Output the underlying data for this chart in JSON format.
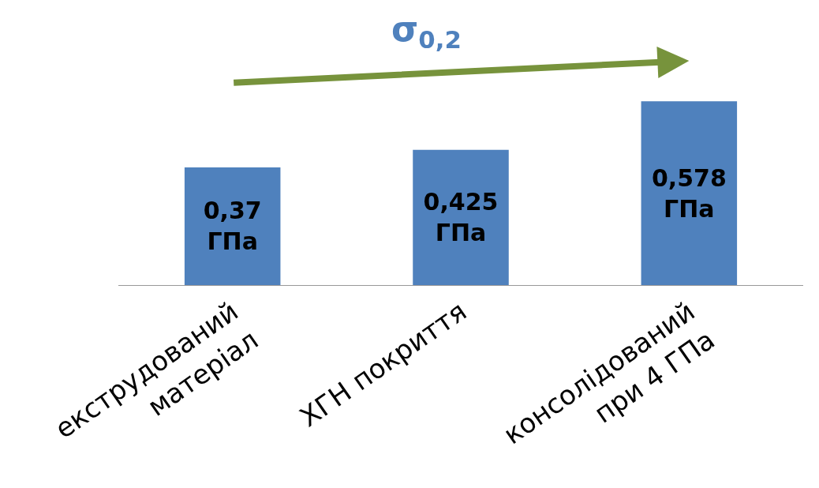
{
  "chart_data": {
    "type": "bar",
    "title": "σ$_{0,2}$",
    "categories": [
      "екструдований матеріал",
      "ХГН покриття",
      "консолідований при 4 ГПа"
    ],
    "values": [
      0.37,
      0.425,
      0.578
    ],
    "value_labels": [
      "0,37 ГПа",
      "0,425 ГПа",
      "0,578 ГПа"
    ],
    "color": "#4f81bd",
    "legend": false
  }
}
